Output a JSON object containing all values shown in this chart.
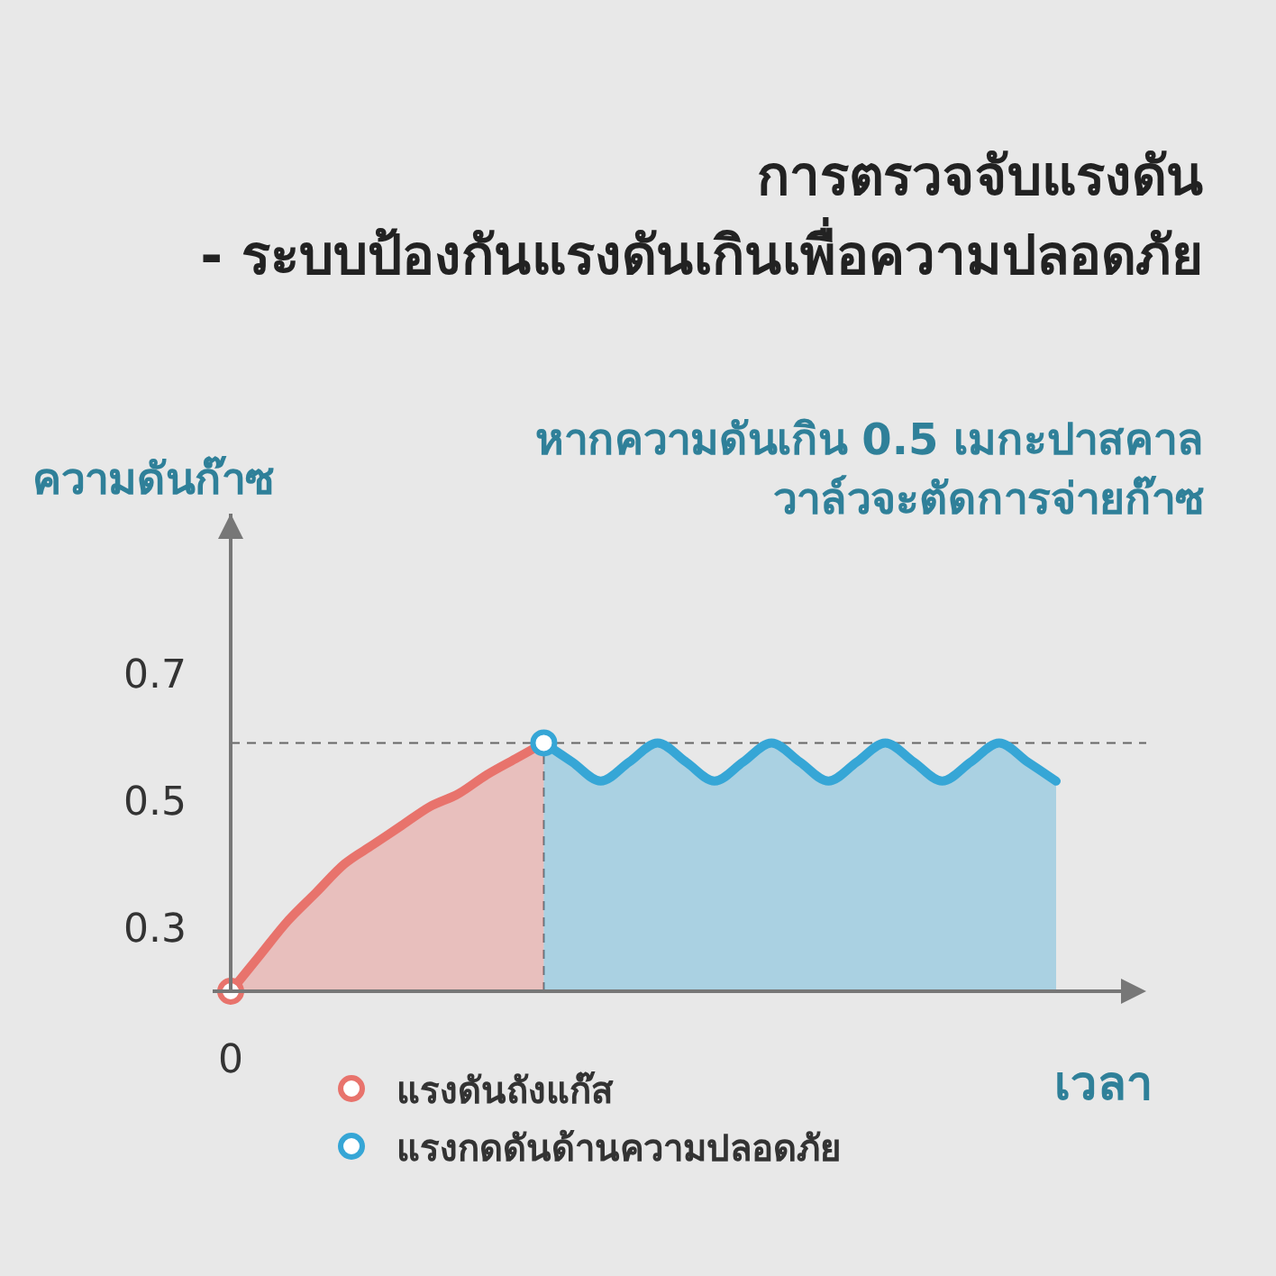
{
  "chart_data": {
    "type": "area",
    "title": "การตรวจจับแรงดัน",
    "subtitle": "- ระบบป้องกันแรงดันเกินเพื่อความปลอดภัย",
    "ylabel": "ความดันก๊าซ",
    "xlabel": "เวลา",
    "annotations": [
      "หากความดันเกิน 0.5 เมกะปาสคาล",
      "วาล์วจะตัดการจ่ายก๊าซ"
    ],
    "categories": [
      "0",
      null,
      null,
      null,
      null,
      null,
      null,
      null,
      null,
      null,
      null,
      null,
      null,
      null,
      null,
      null,
      null,
      null,
      null,
      null,
      null,
      null,
      null,
      null,
      null,
      null,
      null,
      null,
      null,
      null
    ],
    "ylim": [
      0.2,
      0.95
    ],
    "yticks": [
      {
        "value": 0.3,
        "label": "0.3"
      },
      {
        "value": 0.5,
        "label": "0.5"
      },
      {
        "value": 0.7,
        "label": "0.7"
      }
    ],
    "legend": "bottom",
    "ref_lines": [
      {
        "axis": "y",
        "value": 0.59,
        "color": "#666666",
        "line_style": "dashed"
      }
    ],
    "series": [
      {
        "name": "แรงดันถังแก๊ส",
        "color": "#e8736c",
        "values": [
          0.2,
          0.255,
          0.31,
          0.355,
          0.4,
          0.43,
          0.46,
          0.49,
          0.51,
          0.54,
          0.565,
          0.59,
          null,
          null,
          null,
          null,
          null,
          null,
          null,
          null,
          null,
          null,
          null,
          null,
          null,
          null,
          null,
          null,
          null,
          null
        ]
      },
      {
        "name": "แรงกดดันด้านความปลอดภัย",
        "color": "#36a6d6",
        "values": [
          null,
          null,
          null,
          null,
          null,
          null,
          null,
          null,
          null,
          null,
          null,
          0.59,
          0.56,
          0.53,
          0.56,
          0.59,
          0.56,
          0.53,
          0.56,
          0.59,
          0.56,
          0.53,
          0.56,
          0.59,
          0.56,
          0.53,
          0.56,
          0.59,
          0.56,
          0.53
        ]
      },
      {
        "type": "scatter",
        "marker": "circle",
        "color": "#e8736c",
        "values": [
          0.2,
          null,
          null,
          null,
          null,
          null,
          null,
          null,
          null,
          null,
          null,
          null,
          null,
          null,
          null,
          null,
          null,
          null,
          null,
          null,
          null,
          null,
          null,
          null,
          null,
          null,
          null,
          null,
          null,
          null
        ]
      },
      {
        "type": "scatter",
        "marker": "circle",
        "color": "#36a6d6",
        "values": [
          null,
          null,
          null,
          null,
          null,
          null,
          null,
          null,
          null,
          null,
          null,
          0.59,
          null,
          null,
          null,
          null,
          null,
          null,
          null,
          null,
          null,
          null,
          null,
          null,
          null,
          null,
          null,
          null,
          null,
          null
        ]
      }
    ]
  }
}
